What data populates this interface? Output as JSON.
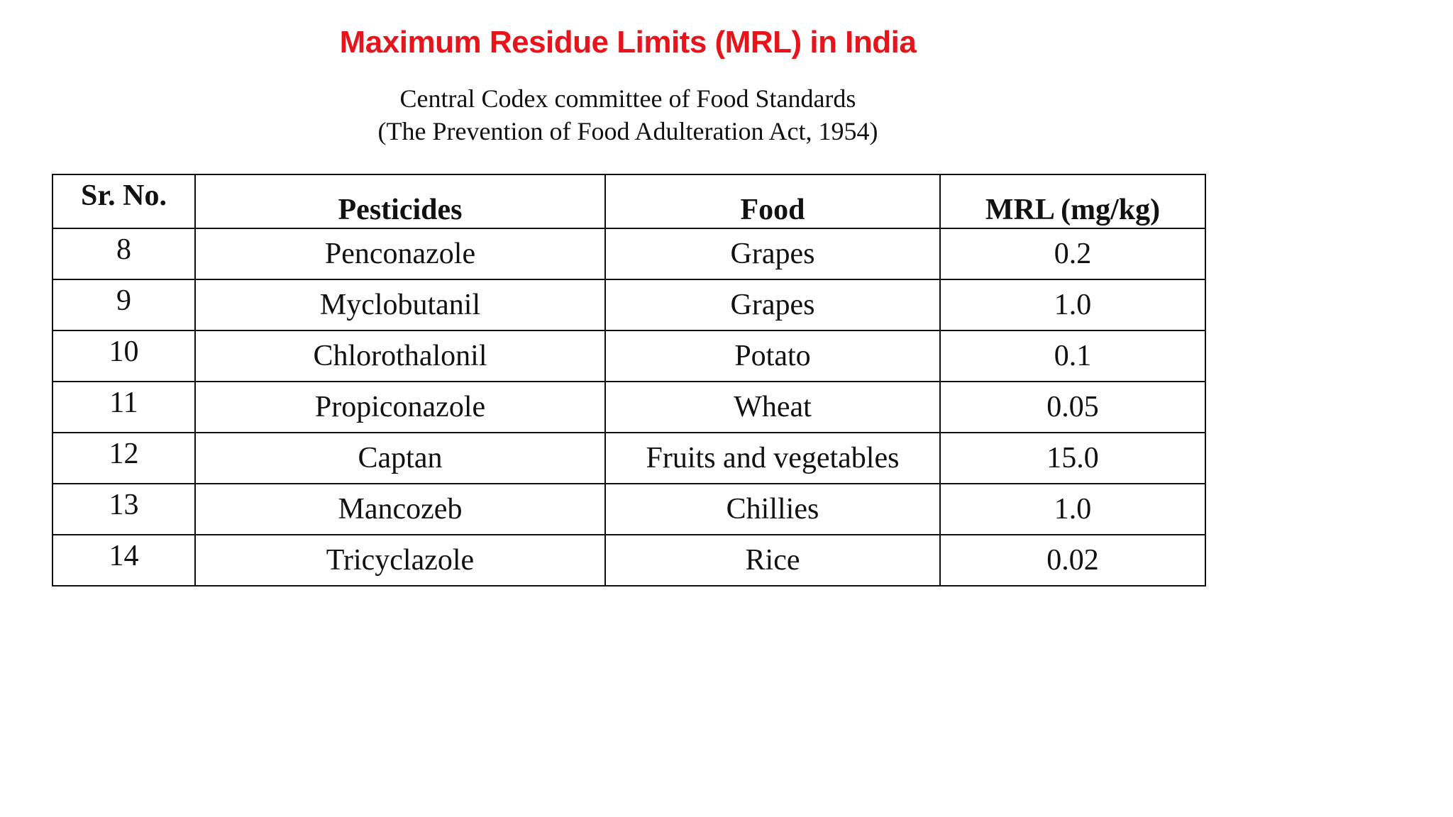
{
  "title": "Maximum Residue Limits (MRL) in India",
  "title_color": "#e8141b",
  "subtitle_lines": [
    "Central Codex committee of Food Standards",
    "(The Prevention of Food Adulteration Act, 1954)"
  ],
  "table": {
    "headers": [
      "Sr. No.",
      "Pesticides",
      "Food",
      "MRL (mg/kg)"
    ],
    "rows": [
      {
        "sr": "8",
        "pesticide": "Penconazole",
        "food": "Grapes",
        "mrl": "0.2"
      },
      {
        "sr": "9",
        "pesticide": "Myclobutanil",
        "food": "Grapes",
        "mrl": "1.0"
      },
      {
        "sr": "10",
        "pesticide": "Chlorothalonil",
        "food": "Potato",
        "mrl": "0.1"
      },
      {
        "sr": "11",
        "pesticide": "Propiconazole",
        "food": "Wheat",
        "mrl": "0.05"
      },
      {
        "sr": "12",
        "pesticide": "Captan",
        "food": "Fruits and vegetables",
        "mrl": "15.0"
      },
      {
        "sr": "13",
        "pesticide": "Mancozeb",
        "food": "Chillies",
        "mrl": "1.0"
      },
      {
        "sr": "14",
        "pesticide": "Tricyclazole",
        "food": "Rice",
        "mrl": "0.02"
      }
    ]
  }
}
